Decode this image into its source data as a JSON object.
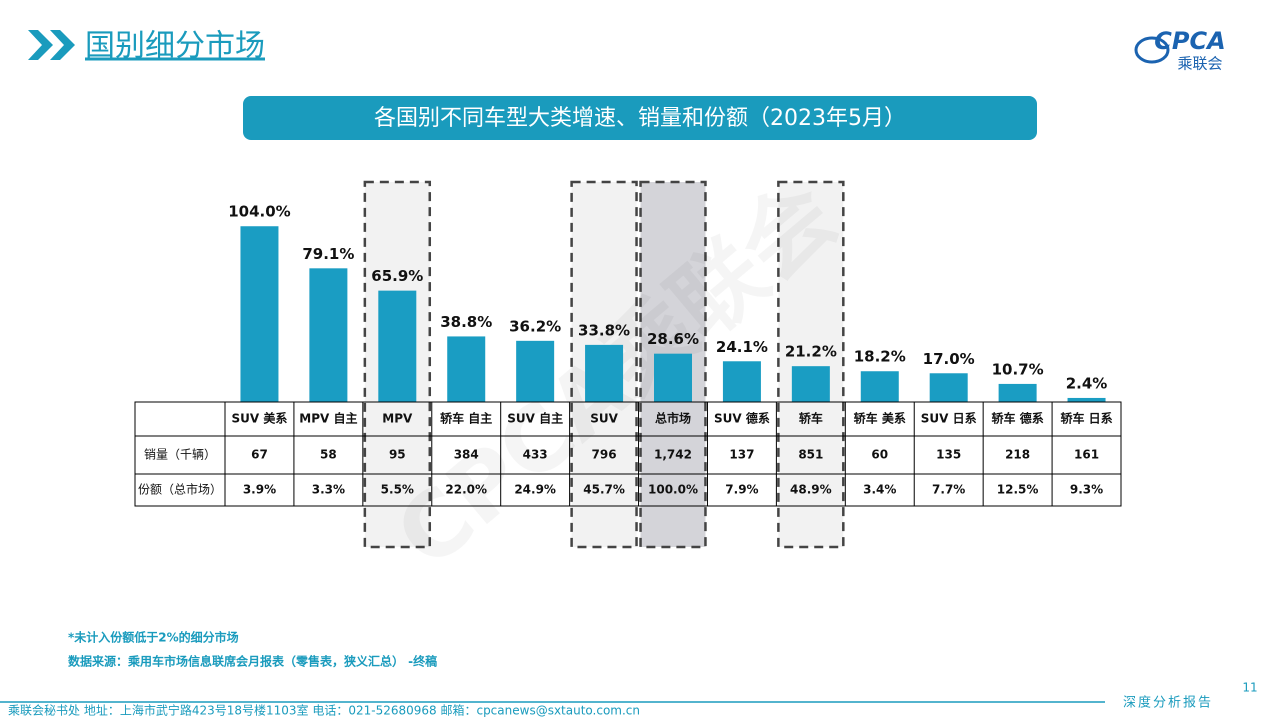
{
  "header": {
    "title": "国别细分市场",
    "logo": "CPCA",
    "logo_sub": "乘联会"
  },
  "chart_data": {
    "type": "bar",
    "title": "各国别不同车型大类增速、销量和份额（2023年5月）",
    "categories": [
      "SUV 美系",
      "MPV 自主",
      "MPV",
      "轿车 自主",
      "SUV 自主",
      "SUV",
      "总市场",
      "SUV 德系",
      "轿车",
      "轿车 美系",
      "SUV 日系",
      "轿车 德系",
      "轿车 日系"
    ],
    "values": [
      104.0,
      79.1,
      65.9,
      38.8,
      36.2,
      33.8,
      28.6,
      24.1,
      21.2,
      18.2,
      17.0,
      10.7,
      2.4
    ],
    "value_labels": [
      "104.0%",
      "79.1%",
      "65.9%",
      "38.8%",
      "36.2%",
      "33.8%",
      "28.6%",
      "24.1%",
      "21.2%",
      "18.2%",
      "17.0%",
      "10.7%",
      "2.4%"
    ],
    "color": "#1a9dc3"
  },
  "table": {
    "row_headers": [
      "销量（千辆）",
      "份额（总市场）"
    ],
    "rows": [
      [
        "67",
        "58",
        "95",
        "384",
        "433",
        "796",
        "1,742",
        "137",
        "851",
        "60",
        "135",
        "218",
        "161"
      ],
      [
        "3.9%",
        "3.3%",
        "5.5%",
        "22.0%",
        "24.9%",
        "45.7%",
        "100.0%",
        "7.9%",
        "48.9%",
        "3.4%",
        "7.7%",
        "12.5%",
        "9.3%"
      ]
    ]
  },
  "watermark": "CPCA乘联会",
  "notes": [
    "*未计入份额低于2%的细分市场",
    "数据来源：乘用车市场信息联席会月报表（零售表，狭义汇总） -终稿"
  ],
  "footer": {
    "address": "乘联会秘书处   地址：上海市武宁路423号18号楼1103室  电话：021-52680968   邮箱：cpcanews@sxtauto.com.cn",
    "page": "11",
    "tag": "深度分析报告"
  }
}
